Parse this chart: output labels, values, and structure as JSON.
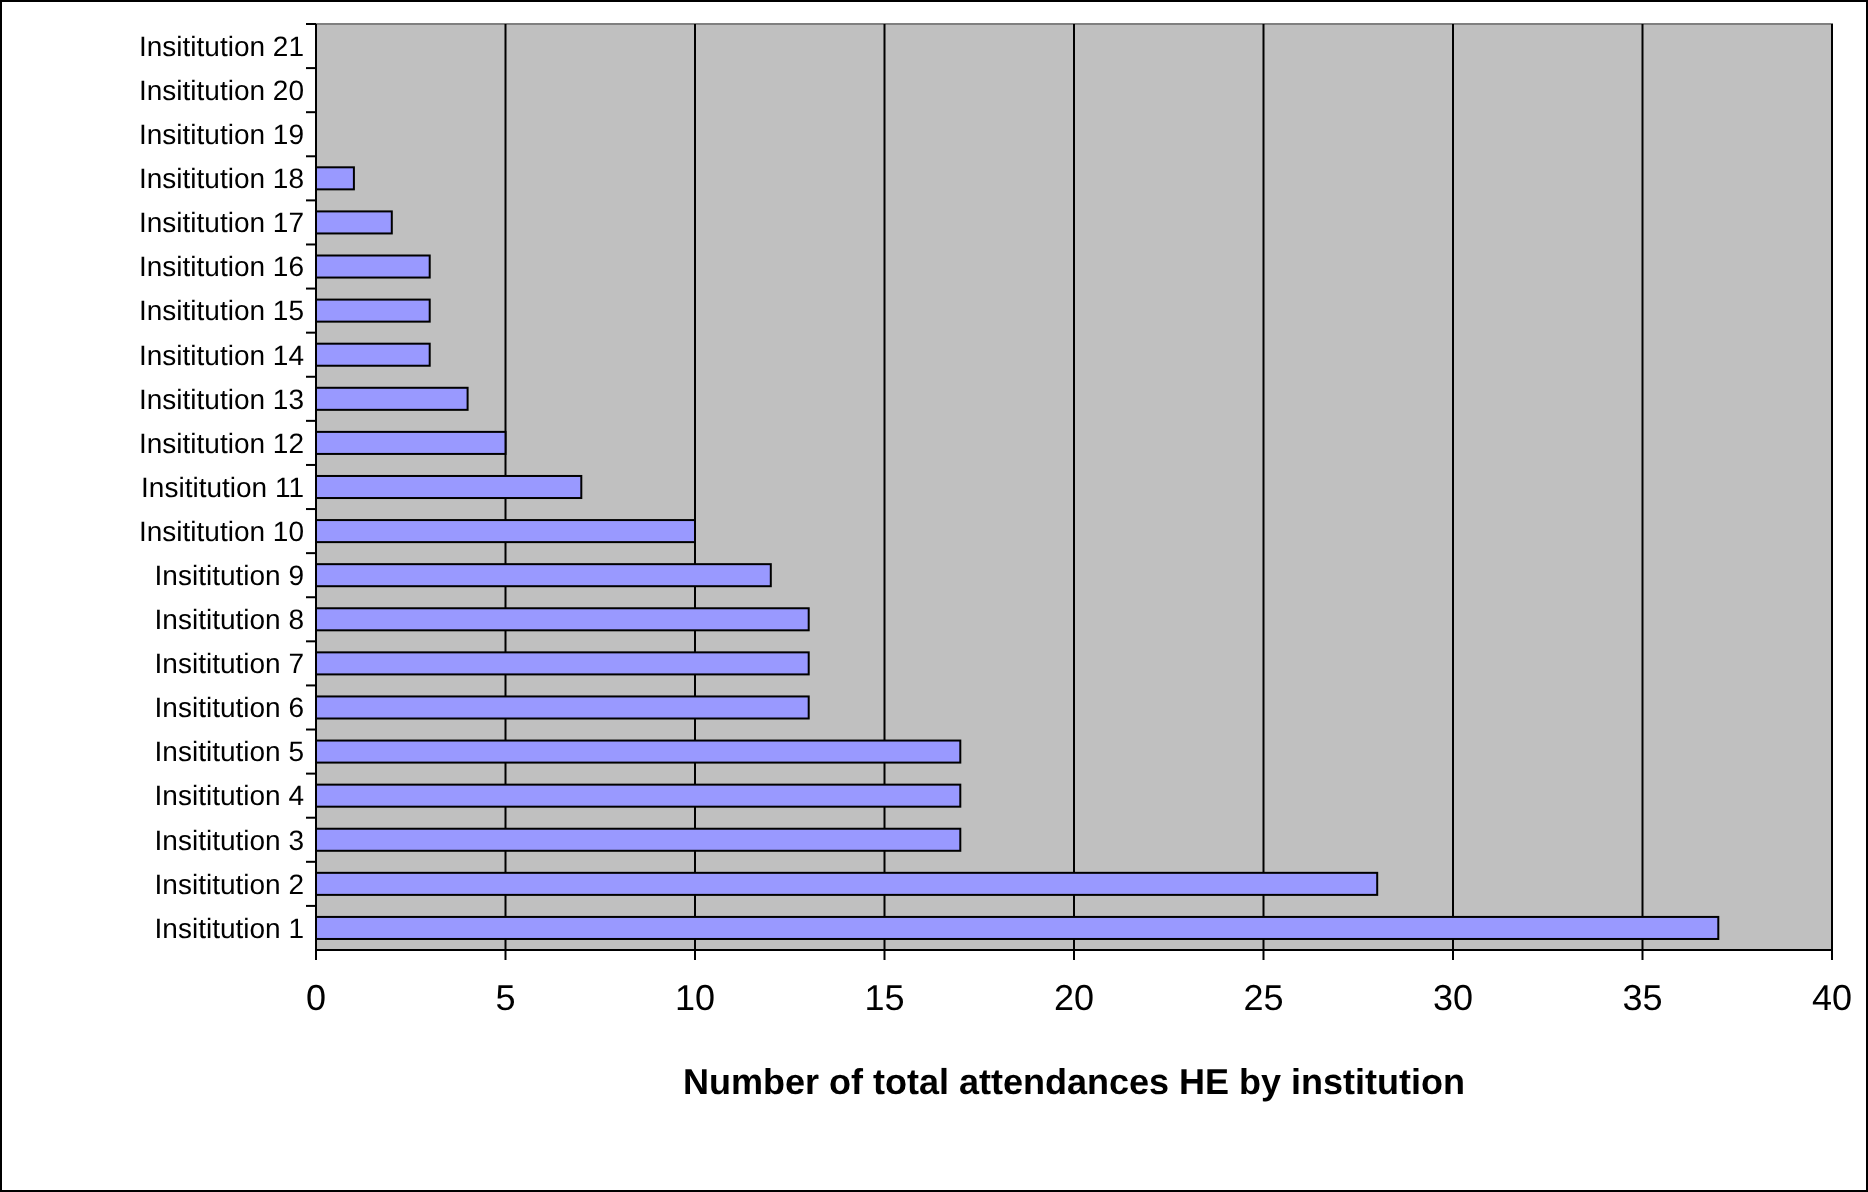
{
  "chart_data": {
    "type": "bar",
    "orientation": "horizontal",
    "xlabel": "Number of total attendances  HE by institution",
    "categories": [
      "Insititution 21",
      "Insititution 20",
      "Insititution 19",
      "Insititution 18",
      "Insititution 17",
      "Insititution 16",
      "Insititution 15",
      "Insititution 14",
      "Insititution 13",
      "Insititution 12",
      "Insititution 11",
      "Insititution 10",
      "Insititution 9",
      "Insititution 8",
      "Insititution 7",
      "Insititution 6",
      "Insititution 5",
      "Insititution 4",
      "Insititution 3",
      "Insititution 2",
      "Insititution 1"
    ],
    "values": [
      0,
      0,
      0,
      1,
      2,
      3,
      3,
      3,
      4,
      5,
      7,
      10,
      12,
      13,
      13,
      13,
      17,
      17,
      17,
      28,
      37
    ],
    "color": "#9999ff",
    "xlim": [
      0,
      40
    ],
    "xticks": [
      0,
      5,
      10,
      15,
      20,
      25,
      30,
      35,
      40
    ],
    "grid": "x"
  }
}
